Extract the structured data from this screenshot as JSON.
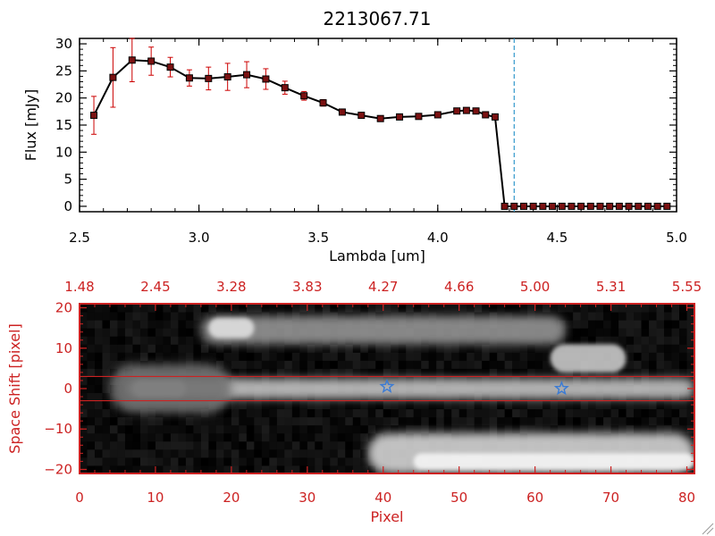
{
  "colors": {
    "accent_red": "#cc2222",
    "line": "#000000",
    "errorbar": "#cc0000",
    "dashed": "#3399cc",
    "star": "#3a7bd5"
  },
  "chart_data": [
    {
      "type": "line",
      "title": "2213067.71",
      "xlabel": "Lambda [um]",
      "ylabel": "Flux [mJy]",
      "xlim": [
        2.5,
        5.0
      ],
      "ylim": [
        -1,
        31
      ],
      "xticks": [
        2.5,
        3.0,
        3.5,
        4.0,
        4.5,
        5.0
      ],
      "xtick_labels": [
        "2.5",
        "3.0",
        "3.5",
        "4.0",
        "4.5",
        "5.0"
      ],
      "yticks": [
        0,
        5,
        10,
        15,
        20,
        25,
        30
      ],
      "ytick_labels": [
        "0",
        "5",
        "10",
        "15",
        "20",
        "25",
        "30"
      ],
      "marker_line_x": 4.32,
      "series": [
        {
          "name": "flux",
          "x": [
            2.56,
            2.64,
            2.72,
            2.8,
            2.88,
            2.96,
            3.04,
            3.12,
            3.2,
            3.28,
            3.36,
            3.44,
            3.52,
            3.6,
            3.68,
            3.76,
            3.84,
            3.92,
            4.0,
            4.08,
            4.12,
            4.16,
            4.2,
            4.24,
            4.28,
            4.32,
            4.36,
            4.4,
            4.44,
            4.48,
            4.52,
            4.56,
            4.6,
            4.64,
            4.68,
            4.72,
            4.76,
            4.8,
            4.84,
            4.88,
            4.92,
            4.96
          ],
          "y": [
            16.8,
            23.8,
            27.0,
            26.8,
            25.7,
            23.7,
            23.6,
            23.9,
            24.3,
            23.5,
            21.9,
            20.4,
            19.1,
            17.4,
            16.8,
            16.2,
            16.5,
            16.6,
            16.9,
            17.6,
            17.7,
            17.6,
            16.9,
            16.5,
            0.0,
            0.0,
            0.0,
            0.0,
            0.0,
            0.0,
            0.0,
            0.0,
            0.0,
            0.0,
            0.0,
            0.0,
            0.0,
            0.0,
            0.0,
            0.0,
            0.0,
            0.0
          ],
          "yerr": [
            3.5,
            5.5,
            4.0,
            2.6,
            1.8,
            1.5,
            2.1,
            2.5,
            2.4,
            1.9,
            1.2,
            0.8,
            0.6,
            0.5,
            0.5,
            0.5,
            0.5,
            0.5,
            0.5,
            0.5,
            0.5,
            0.5,
            0.5,
            0.5,
            0.3,
            0.3,
            0.3,
            0.3,
            0.3,
            0.3,
            0.3,
            0.3,
            0.3,
            0.3,
            0.3,
            0.3,
            0.3,
            0.3,
            0.3,
            0.3,
            0.3,
            0.3
          ]
        }
      ]
    },
    {
      "type": "heatmap",
      "xlabel": "Pixel",
      "ylabel": "Space Shift [pixel]",
      "xlim": [
        0,
        81
      ],
      "ylim": [
        -21,
        21
      ],
      "xticks": [
        0,
        10,
        20,
        30,
        40,
        50,
        60,
        70,
        80
      ],
      "xtick_labels": [
        "0",
        "10",
        "20",
        "30",
        "40",
        "50",
        "60",
        "70",
        "80"
      ],
      "yticks": [
        -20,
        -10,
        0,
        10,
        20
      ],
      "ytick_labels": [
        "−20",
        "−10",
        "0",
        "10",
        "20"
      ],
      "top_axis_ticks": [
        0,
        10,
        20,
        30,
        40,
        50,
        60,
        70,
        80
      ],
      "top_axis_labels": [
        "1.48",
        "2.45",
        "3.28",
        "3.83",
        "4.27",
        "4.66",
        "5.00",
        "5.31",
        "5.55"
      ],
      "extraction_band": [
        -3,
        3
      ],
      "star_markers": [
        {
          "x": 40.5,
          "y": 0.5
        },
        {
          "x": 63.5,
          "y": 0
        }
      ],
      "features": [
        {
          "name": "main-trace",
          "x": [
            6,
            81
          ],
          "y": [
            -2.5,
            2.5
          ],
          "intensity": 0.72
        },
        {
          "name": "main-trace-core",
          "x": [
            7,
            14
          ],
          "y": [
            -2,
            2
          ],
          "intensity": 1.0
        },
        {
          "name": "upper-trace",
          "x": [
            16,
            64
          ],
          "y": [
            11,
            18
          ],
          "intensity": 0.5
        },
        {
          "name": "upper-blob",
          "x": [
            17,
            23
          ],
          "y": [
            12.5,
            17.5
          ],
          "intensity": 0.85
        },
        {
          "name": "right-blob",
          "x": [
            62,
            72
          ],
          "y": [
            4,
            11
          ],
          "intensity": 0.75
        },
        {
          "name": "lower-trace",
          "x": [
            38,
            81
          ],
          "y": [
            -21,
            -11
          ],
          "intensity": 0.8
        },
        {
          "name": "lower-core",
          "x": [
            44,
            81
          ],
          "y": [
            -20,
            -16
          ],
          "intensity": 0.95
        },
        {
          "name": "left-halo",
          "x": [
            4,
            20
          ],
          "y": [
            -6,
            6
          ],
          "intensity": 0.35
        }
      ]
    }
  ]
}
